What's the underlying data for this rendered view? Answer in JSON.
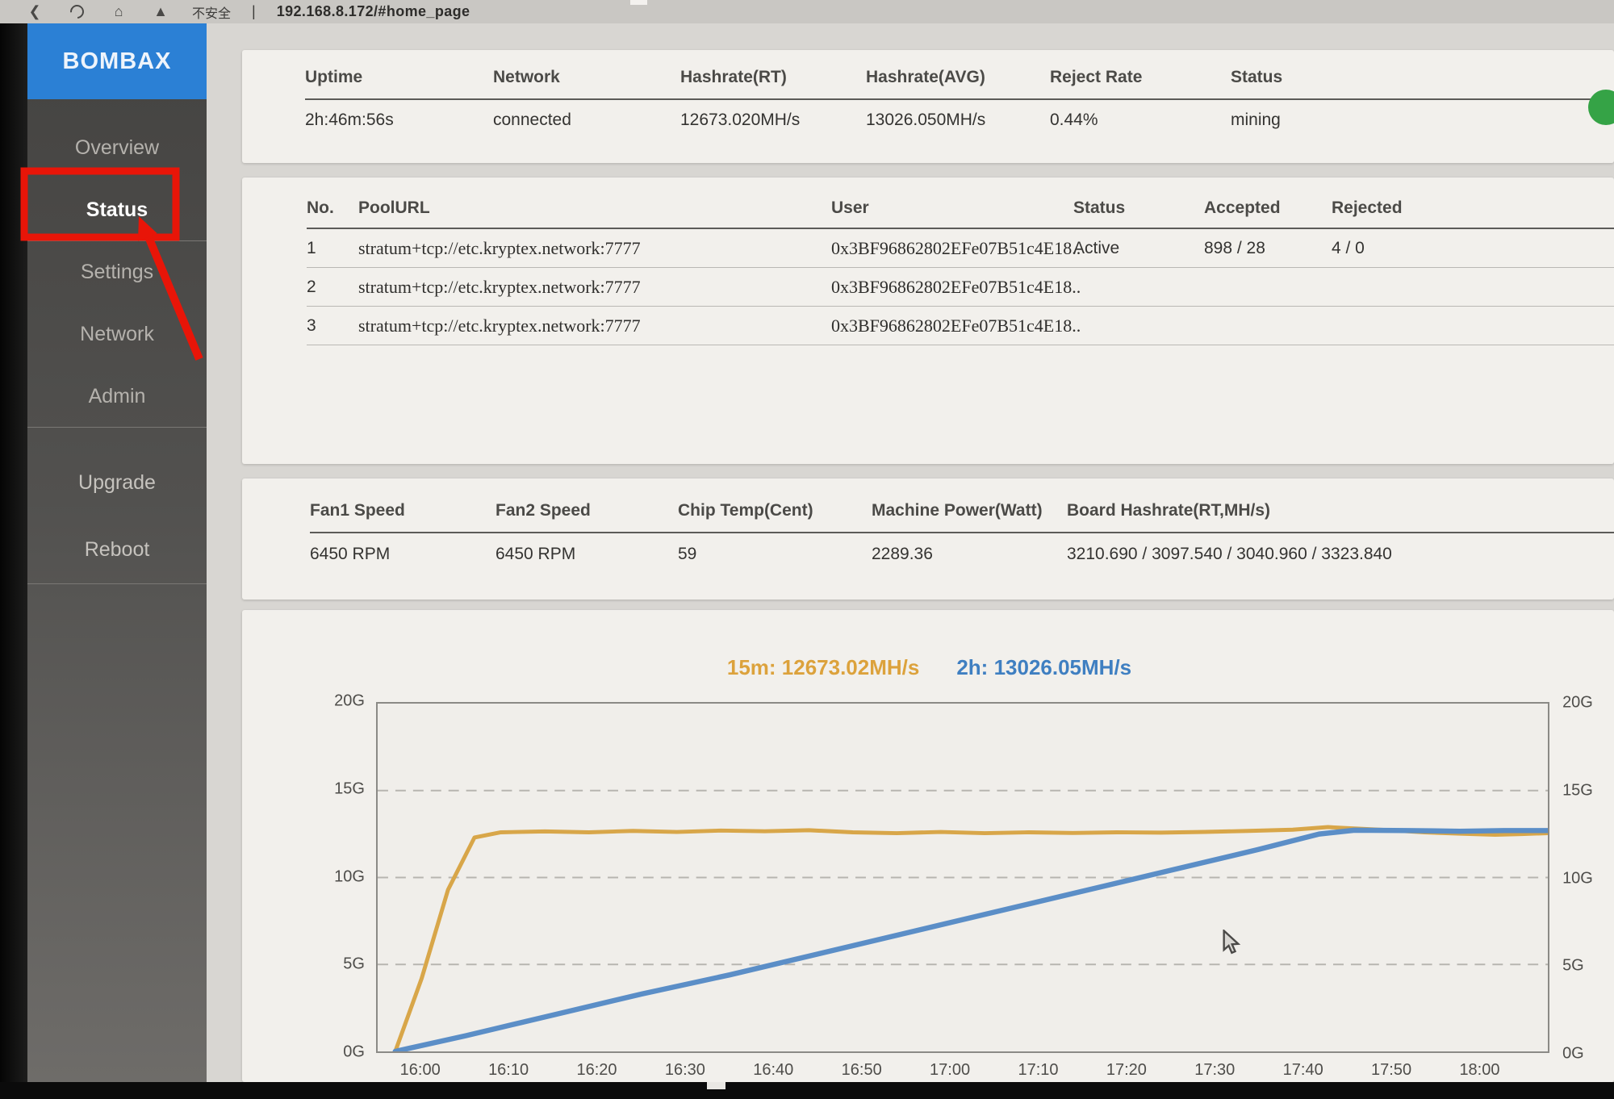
{
  "browser": {
    "security_label": "不安全",
    "separator": "|",
    "url": "192.168.8.172/#home_page"
  },
  "sidebar": {
    "brand": "BOMBAX",
    "items": [
      {
        "label": "Overview",
        "active": false
      },
      {
        "label": "Status",
        "active": true
      },
      {
        "label": "Settings",
        "active": false
      },
      {
        "label": "Network",
        "active": false
      },
      {
        "label": "Admin",
        "active": false
      },
      {
        "label": "Upgrade",
        "active": false
      },
      {
        "label": "Reboot",
        "active": false
      }
    ]
  },
  "annotation": {
    "type": "highlight-box-with-arrow",
    "target": "Status",
    "color": "#E81508"
  },
  "summary": {
    "columns": [
      "Uptime",
      "Network",
      "Hashrate(RT)",
      "Hashrate(AVG)",
      "Reject Rate",
      "Status"
    ],
    "values": [
      "2h:46m:56s",
      "connected",
      "12673.020MH/s",
      "13026.050MH/s",
      "0.44%",
      "mining"
    ],
    "status_dot_color": "#35A346"
  },
  "pools": {
    "columns": [
      "No.",
      "PoolURL",
      "User",
      "Status",
      "Accepted",
      "Rejected"
    ],
    "rows": [
      {
        "no": "1",
        "url": "stratum+tcp://etc.kryptex.network:7777",
        "user": "0x3BF96862802EFe07B51c4E18..",
        "status": "Active",
        "accepted": "898 / 28",
        "rejected": "4 / 0"
      },
      {
        "no": "2",
        "url": "stratum+tcp://etc.kryptex.network:7777",
        "user": "0x3BF96862802EFe07B51c4E18..",
        "status": "",
        "accepted": "",
        "rejected": ""
      },
      {
        "no": "3",
        "url": "stratum+tcp://etc.kryptex.network:7777",
        "user": "0x3BF96862802EFe07B51c4E18..",
        "status": "",
        "accepted": "",
        "rejected": ""
      }
    ]
  },
  "hardware": {
    "columns": [
      "Fan1 Speed",
      "Fan2 Speed",
      "Chip Temp(Cent)",
      "Machine Power(Watt)",
      "Board Hashrate(RT,MH/s)"
    ],
    "values": [
      "6450 RPM",
      "6450 RPM",
      "59",
      "2289.36",
      "3210.690 / 3097.540 / 3040.960 / 3323.840"
    ]
  },
  "chart_data": {
    "type": "line",
    "title": "",
    "legend": [
      {
        "label": "15m: 12673.02MH/s",
        "color": "#DCA23C"
      },
      {
        "label": "2h: 13026.05MH/s",
        "color": "#3F7FC1"
      }
    ],
    "y_ticks": [
      "20G",
      "15G",
      "10G",
      "5G",
      "0G"
    ],
    "x_ticks": [
      "16:00",
      "16:10",
      "16:20",
      "16:30",
      "16:40",
      "16:50",
      "17:00",
      "17:10",
      "17:20",
      "17:30",
      "17:40",
      "17:50",
      "18:00"
    ],
    "x_tick_minutes": [
      0,
      10,
      20,
      30,
      40,
      50,
      60,
      70,
      80,
      90,
      100,
      110,
      120
    ],
    "xlim_minutes": [
      -5,
      128
    ],
    "ylim": [
      0,
      20
    ],
    "grid_values": [
      5,
      10,
      15
    ],
    "grid_style": "dashed",
    "legend_position": "top-center",
    "series": [
      {
        "name": "15m",
        "color": "#D8A649",
        "x": [
          -3,
          0,
          3,
          6,
          9,
          14,
          19,
          24,
          29,
          34,
          39,
          44,
          49,
          54,
          59,
          64,
          69,
          74,
          79,
          84,
          89,
          94,
          99,
          103,
          106,
          110,
          114,
          118,
          122,
          125,
          128
        ],
        "y": [
          0,
          4.2,
          9.3,
          12.3,
          12.6,
          12.65,
          12.6,
          12.68,
          12.62,
          12.7,
          12.66,
          12.72,
          12.6,
          12.55,
          12.62,
          12.55,
          12.6,
          12.56,
          12.6,
          12.58,
          12.62,
          12.68,
          12.75,
          12.9,
          12.82,
          12.72,
          12.6,
          12.52,
          12.46,
          12.5,
          12.55
        ]
      },
      {
        "name": "2h",
        "color": "#5B8EC7",
        "x": [
          -3,
          5,
          15,
          25,
          35,
          45,
          55,
          65,
          75,
          85,
          95,
          102,
          106,
          112,
          118,
          123,
          128
        ],
        "y": [
          0,
          0.9,
          2.1,
          3.3,
          4.4,
          5.6,
          6.8,
          8.0,
          9.2,
          10.4,
          11.6,
          12.5,
          12.72,
          12.7,
          12.66,
          12.7,
          12.7
        ]
      }
    ]
  }
}
